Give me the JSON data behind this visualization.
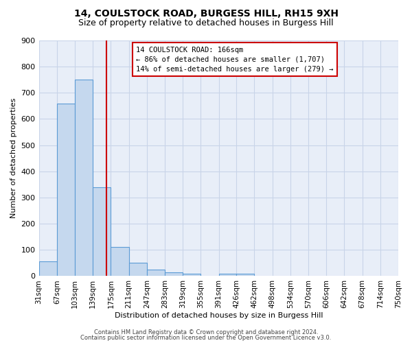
{
  "title1": "14, COULSTOCK ROAD, BURGESS HILL, RH15 9XH",
  "title2": "Size of property relative to detached houses in Burgess Hill",
  "xlabel": "Distribution of detached houses by size in Burgess Hill",
  "ylabel": "Number of detached properties",
  "footer1": "Contains HM Land Registry data © Crown copyright and database right 2024.",
  "footer2": "Contains public sector information licensed under the Open Government Licence v3.0.",
  "bin_labels": [
    "31sqm",
    "67sqm",
    "103sqm",
    "139sqm",
    "175sqm",
    "211sqm",
    "247sqm",
    "283sqm",
    "319sqm",
    "355sqm",
    "391sqm",
    "426sqm",
    "462sqm",
    "498sqm",
    "534sqm",
    "570sqm",
    "606sqm",
    "642sqm",
    "678sqm",
    "714sqm",
    "750sqm"
  ],
  "bin_edges": [
    31,
    67,
    103,
    139,
    175,
    211,
    247,
    283,
    319,
    355,
    391,
    426,
    462,
    498,
    534,
    570,
    606,
    642,
    678,
    714,
    750
  ],
  "bar_heights": [
    55,
    660,
    750,
    340,
    110,
    52,
    25,
    15,
    10,
    0,
    10,
    10,
    0,
    0,
    0,
    0,
    0,
    0,
    0,
    0
  ],
  "bar_color": "#c5d8ee",
  "bar_edge_color": "#5b9bd5",
  "grid_color": "#c8d4e8",
  "bg_color": "#e8eef8",
  "red_line_x": 166,
  "red_line_color": "#cc0000",
  "ylim": [
    0,
    900
  ],
  "yticks": [
    0,
    100,
    200,
    300,
    400,
    500,
    600,
    700,
    800,
    900
  ],
  "annotation_text": "14 COULSTOCK ROAD: 166sqm\n← 86% of detached houses are smaller (1,707)\n14% of semi-detached houses are larger (279) →",
  "annotation_box_color": "#cc0000",
  "title1_fontsize": 10,
  "title2_fontsize": 9
}
